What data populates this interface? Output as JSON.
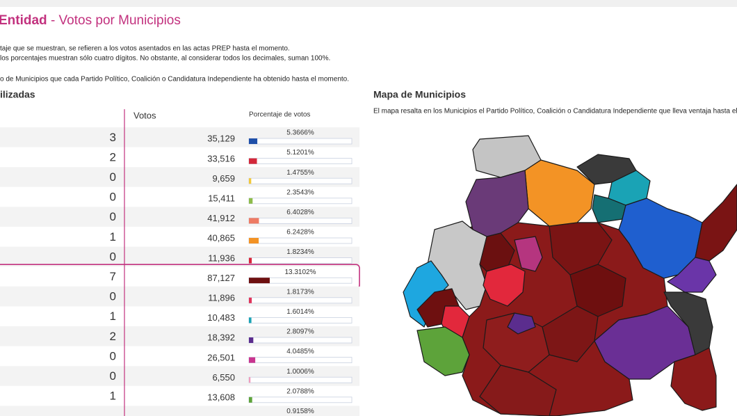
{
  "header": {
    "title_bold": "Entidad",
    "title_rest": " - Votos por Municipios"
  },
  "notes": [
    "taje que se muestran, se refieren a los votos asentados en las actas PREP hasta el momento.",
    "los porcentajes muestran sólo cuatro dígitos. No obstante, al considerar todos los decimales, suman 100%.",
    "o de Municipios que cada Partido Político, Coalición o Candidatura Independiente ha obtenido hasta el momento."
  ],
  "table": {
    "title": "ilizadas",
    "columns": [
      "Votos",
      "Porcentaje de votos"
    ],
    "rows": [
      {
        "won": "3",
        "votes": "35,129",
        "pct": 5.3666,
        "pct_label": "5.3666%",
        "color": "#1f4fa8"
      },
      {
        "won": "2",
        "votes": "33,516",
        "pct": 5.1201,
        "pct_label": "5.1201%",
        "color": "#d3283a"
      },
      {
        "won": "0",
        "votes": "9,659",
        "pct": 1.4755,
        "pct_label": "1.4755%",
        "color": "#f2c83a"
      },
      {
        "won": "0",
        "votes": "15,411",
        "pct": 2.3543,
        "pct_label": "2.3543%",
        "color": "#8dbb4a"
      },
      {
        "won": "0",
        "votes": "41,912",
        "pct": 6.4028,
        "pct_label": "6.4028%",
        "color": "#ee7b63"
      },
      {
        "won": "1",
        "votes": "40,865",
        "pct": 6.2428,
        "pct_label": "6.2428%",
        "color": "#f39325"
      },
      {
        "won": "0",
        "votes": "11,936",
        "pct": 1.8234,
        "pct_label": "1.8234%",
        "color": "#d9263a"
      },
      {
        "won": "7",
        "votes": "87,127",
        "pct": 13.3102,
        "pct_label": "13.3102%",
        "color": "#6e1010",
        "highlight": true
      },
      {
        "won": "0",
        "votes": "11,896",
        "pct": 1.8173,
        "pct_label": "1.8173%",
        "color": "#e0345a"
      },
      {
        "won": "1",
        "votes": "10,483",
        "pct": 1.6014,
        "pct_label": "1.6014%",
        "color": "#1aa3b5"
      },
      {
        "won": "2",
        "votes": "18,392",
        "pct": 2.8097,
        "pct_label": "2.8097%",
        "color": "#5b2d8e"
      },
      {
        "won": "0",
        "votes": "26,501",
        "pct": 4.0485,
        "pct_label": "4.0485%",
        "color": "#c9348f"
      },
      {
        "won": "0",
        "votes": "6,550",
        "pct": 1.0006,
        "pct_label": "1.0006%",
        "color": "#f19bbd"
      },
      {
        "won": "1",
        "votes": "13,608",
        "pct": 2.0788,
        "pct_label": "2.0788%",
        "color": "#5da33a"
      },
      {
        "won": null,
        "votes": null,
        "pct": 0.9158,
        "pct_label": "0.9158%",
        "color": "#888888"
      }
    ]
  },
  "map": {
    "title": "Mapa de Municipios",
    "note": "El mapa resalta en los Municipios el Partido Político, Coalición o Candidatura Independiente que lleva ventaja hasta el"
  }
}
